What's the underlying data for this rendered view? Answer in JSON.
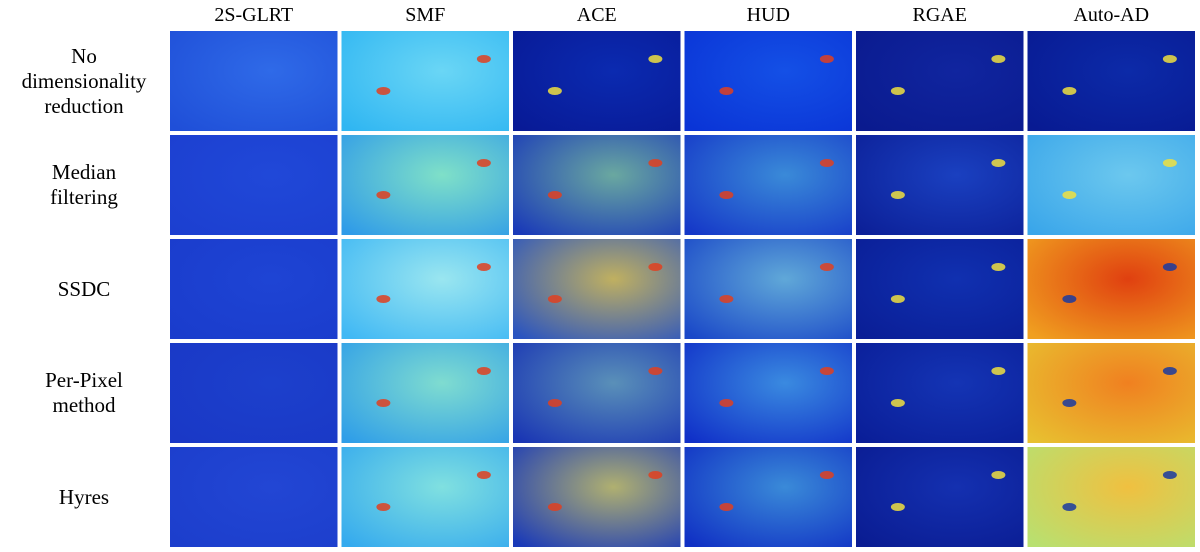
{
  "columns": [
    "2S-GLRT",
    "SMF",
    "ACE",
    "HUD",
    "RGAE",
    "Auto-AD"
  ],
  "rows": [
    [
      "No",
      "dimensionality",
      "reduction"
    ],
    [
      "Median",
      "filtering"
    ],
    [
      "SSDC"
    ],
    [
      "Per-Pixel",
      "method"
    ],
    [
      "Hyres"
    ]
  ]
}
